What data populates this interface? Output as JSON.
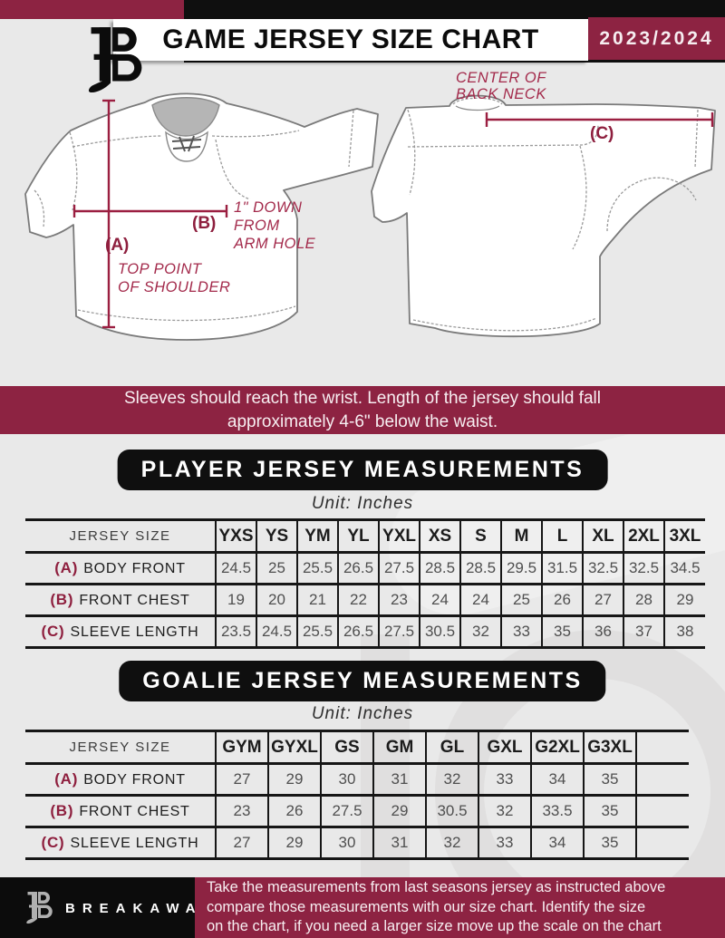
{
  "colors": {
    "maroon": "#8d2342",
    "black": "#0f0f0f",
    "bg": "#e9e9e9"
  },
  "header": {
    "title": "GAME JERSEY SIZE CHART",
    "season": "2023/2024",
    "logo": "breakaway-b-icon"
  },
  "diagrams": {
    "front": {
      "label_a": "(A)",
      "note_a1": "TOP POINT",
      "note_a2": "OF SHOULDER",
      "label_b": "(B)",
      "note_b1": "1\" DOWN",
      "note_b2": "FROM",
      "note_b3": "ARM HOLE"
    },
    "back": {
      "label_c": "(C)",
      "note_c1": "CENTER OF",
      "note_c2": "BACK NECK"
    }
  },
  "notice": {
    "line1": "Sleeves should reach the wrist. Length of the jersey should fall",
    "line2": "approximately 4-6\" below the waist."
  },
  "player_section": {
    "title": "PLAYER JERSEY MEASUREMENTS",
    "unit": "Unit: Inches"
  },
  "goalie_section": {
    "title": "GOALIE JERSEY MEASUREMENTS",
    "unit": "Unit: Inches"
  },
  "player_table": {
    "corner": "JERSEY SIZE",
    "sizes": [
      "YXS",
      "YS",
      "YM",
      "YL",
      "YXL",
      "XS",
      "S",
      "M",
      "L",
      "XL",
      "2XL",
      "3XL"
    ],
    "rows": [
      {
        "key": "(A)",
        "label": "BODY FRONT",
        "values": [
          "24.5",
          "25",
          "25.5",
          "26.5",
          "27.5",
          "28.5",
          "28.5",
          "29.5",
          "31.5",
          "32.5",
          "32.5",
          "34.5"
        ]
      },
      {
        "key": "(B)",
        "label": "FRONT CHEST",
        "values": [
          "19",
          "20",
          "21",
          "22",
          "23",
          "24",
          "24",
          "25",
          "26",
          "27",
          "28",
          "29"
        ]
      },
      {
        "key": "(C)",
        "label": "SLEEVE LENGTH",
        "values": [
          "23.5",
          "24.5",
          "25.5",
          "26.5",
          "27.5",
          "30.5",
          "32",
          "33",
          "35",
          "36",
          "37",
          "38"
        ]
      }
    ]
  },
  "goalie_table": {
    "corner": "JERSEY SIZE",
    "sizes": [
      "GYM",
      "GYXL",
      "GS",
      "GM",
      "GL",
      "GXL",
      "G2XL",
      "G3XL",
      ""
    ],
    "rows": [
      {
        "key": "(A)",
        "label": "BODY FRONT",
        "values": [
          "27",
          "29",
          "30",
          "31",
          "32",
          "33",
          "34",
          "35",
          ""
        ]
      },
      {
        "key": "(B)",
        "label": "FRONT CHEST",
        "values": [
          "23",
          "26",
          "27.5",
          "29",
          "30.5",
          "32",
          "33.5",
          "35",
          ""
        ]
      },
      {
        "key": "(C)",
        "label": "SLEEVE LENGTH",
        "values": [
          "27",
          "29",
          "30",
          "31",
          "32",
          "33",
          "34",
          "35",
          ""
        ]
      }
    ]
  },
  "footer": {
    "brand": "BREAKAWAY",
    "line1": "Take the measurements from last seasons jersey as instructed above",
    "line2": "compare those measurements  with our size chart. Identify the size",
    "line3": "on the chart, if you need a larger size move up the scale on the chart"
  }
}
